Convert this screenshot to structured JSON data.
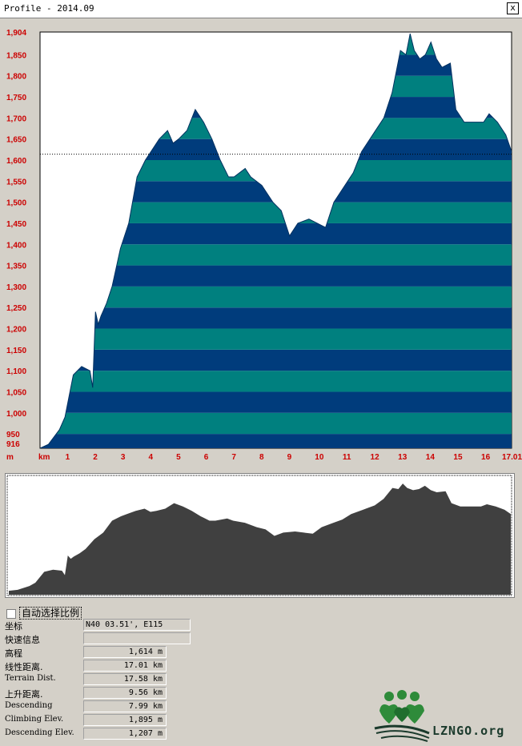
{
  "window": {
    "title": "Profile - 2014.09",
    "close_label": "x"
  },
  "colors": {
    "band_dark": "#003c7c",
    "band_teal": "#00807f",
    "axis_label": "#cc0000",
    "overview_fill": "#404040"
  },
  "chart_data": {
    "type": "area",
    "y_unit": "m",
    "x_unit": "km",
    "ylim": [
      916,
      1904
    ],
    "xlim": [
      0,
      17.01
    ],
    "y_ticks": [
      "1,904",
      "1,850",
      "1,800",
      "1,750",
      "1,700",
      "1,650",
      "1,600",
      "1,550",
      "1,500",
      "1,450",
      "1,400",
      "1,350",
      "1,300",
      "1,250",
      "1,200",
      "1,150",
      "1,100",
      "1,050",
      "1,000",
      "950",
      "916"
    ],
    "x_ticks": [
      "1",
      "2",
      "3",
      "4",
      "5",
      "6",
      "7",
      "8",
      "9",
      "10",
      "11",
      "12",
      "13",
      "14",
      "15",
      "16",
      "17.01"
    ],
    "reference_elevation": 1614,
    "x": [
      0,
      0.3,
      0.7,
      0.9,
      1.2,
      1.5,
      1.8,
      1.9,
      2.0,
      2.1,
      2.2,
      2.4,
      2.6,
      2.9,
      3.2,
      3.5,
      3.8,
      4.0,
      4.3,
      4.6,
      4.8,
      5.0,
      5.3,
      5.6,
      5.9,
      6.2,
      6.5,
      6.8,
      7.0,
      7.4,
      7.6,
      8.0,
      8.4,
      8.7,
      9.0,
      9.3,
      9.7,
      10.0,
      10.3,
      10.6,
      11.0,
      11.3,
      11.6,
      12.0,
      12.4,
      12.7,
      13.0,
      13.2,
      13.35,
      13.5,
      13.7,
      13.9,
      14.1,
      14.3,
      14.5,
      14.8,
      15.0,
      15.3,
      15.6,
      16.0,
      16.2,
      16.5,
      16.8,
      17.01
    ],
    "y": [
      916,
      925,
      960,
      990,
      1090,
      1110,
      1100,
      1060,
      1240,
      1210,
      1230,
      1260,
      1300,
      1390,
      1450,
      1560,
      1600,
      1620,
      1650,
      1670,
      1640,
      1650,
      1670,
      1720,
      1690,
      1650,
      1600,
      1560,
      1560,
      1580,
      1560,
      1540,
      1500,
      1480,
      1420,
      1450,
      1460,
      1450,
      1440,
      1500,
      1540,
      1570,
      1620,
      1660,
      1700,
      1760,
      1860,
      1850,
      1900,
      1860,
      1840,
      1850,
      1880,
      1840,
      1820,
      1830,
      1720,
      1690,
      1690,
      1690,
      1710,
      1690,
      1660,
      1620
    ]
  },
  "autoscale": {
    "label": "自动选择比例",
    "checked": false
  },
  "info": {
    "coord_label": "坐标",
    "coord_value": "N40 03.51', E115",
    "quick_label": "快速信息",
    "quick_value": "",
    "elev_label": "高程",
    "elev_value": "1,614 m",
    "linear_label": "线性距离.",
    "linear_value": "17.01 km",
    "terrain_label": "Terrain Dist.",
    "terrain_value": "17.58 km",
    "ascend_label": "上升距离.",
    "ascend_value": "9.56 km",
    "descend_label": "Descending",
    "descend_value": "7.99 km",
    "climb_label": "Climbing Elev.",
    "climb_value": "1,895 m",
    "descelev_label": "Descending Elev.",
    "descelev_value": "1,207 m"
  },
  "logo": {
    "text": "LZNGO.org"
  }
}
